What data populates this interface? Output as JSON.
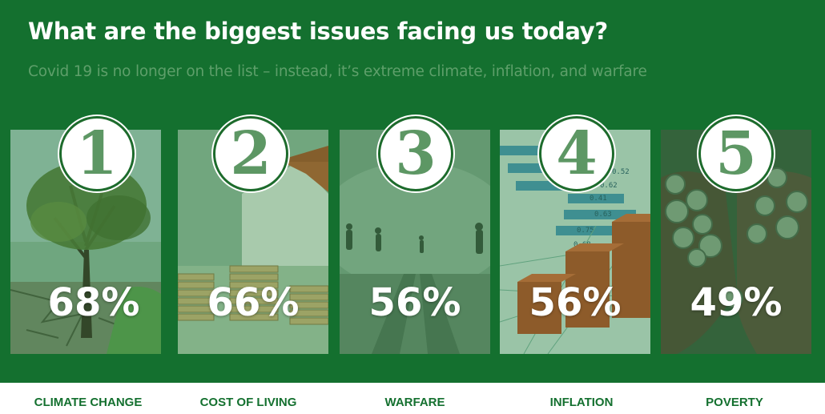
{
  "slide": {
    "title": "What are the biggest issues facing us today?",
    "subtitle": "Covid 19 is no longer on the list – instead, it’s extreme climate, inflation, and warfare"
  },
  "colors": {
    "banner": "#14702f",
    "subtitle": "#5e9f6a",
    "rank_number": "#5d9764",
    "label": "#14702f"
  },
  "issues": [
    {
      "rank": "1",
      "percent": "68%",
      "label": "CLIMATE CHANGE",
      "image": "dead-tree-cracked-earth"
    },
    {
      "rank": "2",
      "percent": "66%",
      "label": "COST OF LIVING",
      "image": "house-and-coin-stacks"
    },
    {
      "rank": "3",
      "percent": "56%",
      "label": "WARFARE",
      "image": "soldiers-in-smoke"
    },
    {
      "rank": "4",
      "percent": "56%",
      "label": "INFLATION",
      "image": "rising-bar-chart-figures"
    },
    {
      "rank": "5",
      "percent": "49%",
      "label": "POVERTY",
      "image": "hands-holding-coins"
    }
  ],
  "image_texts": {
    "inflation_figures": [
      "0.52",
      "0.62",
      "0.41",
      "0.63",
      "0.75",
      "0.68"
    ]
  }
}
